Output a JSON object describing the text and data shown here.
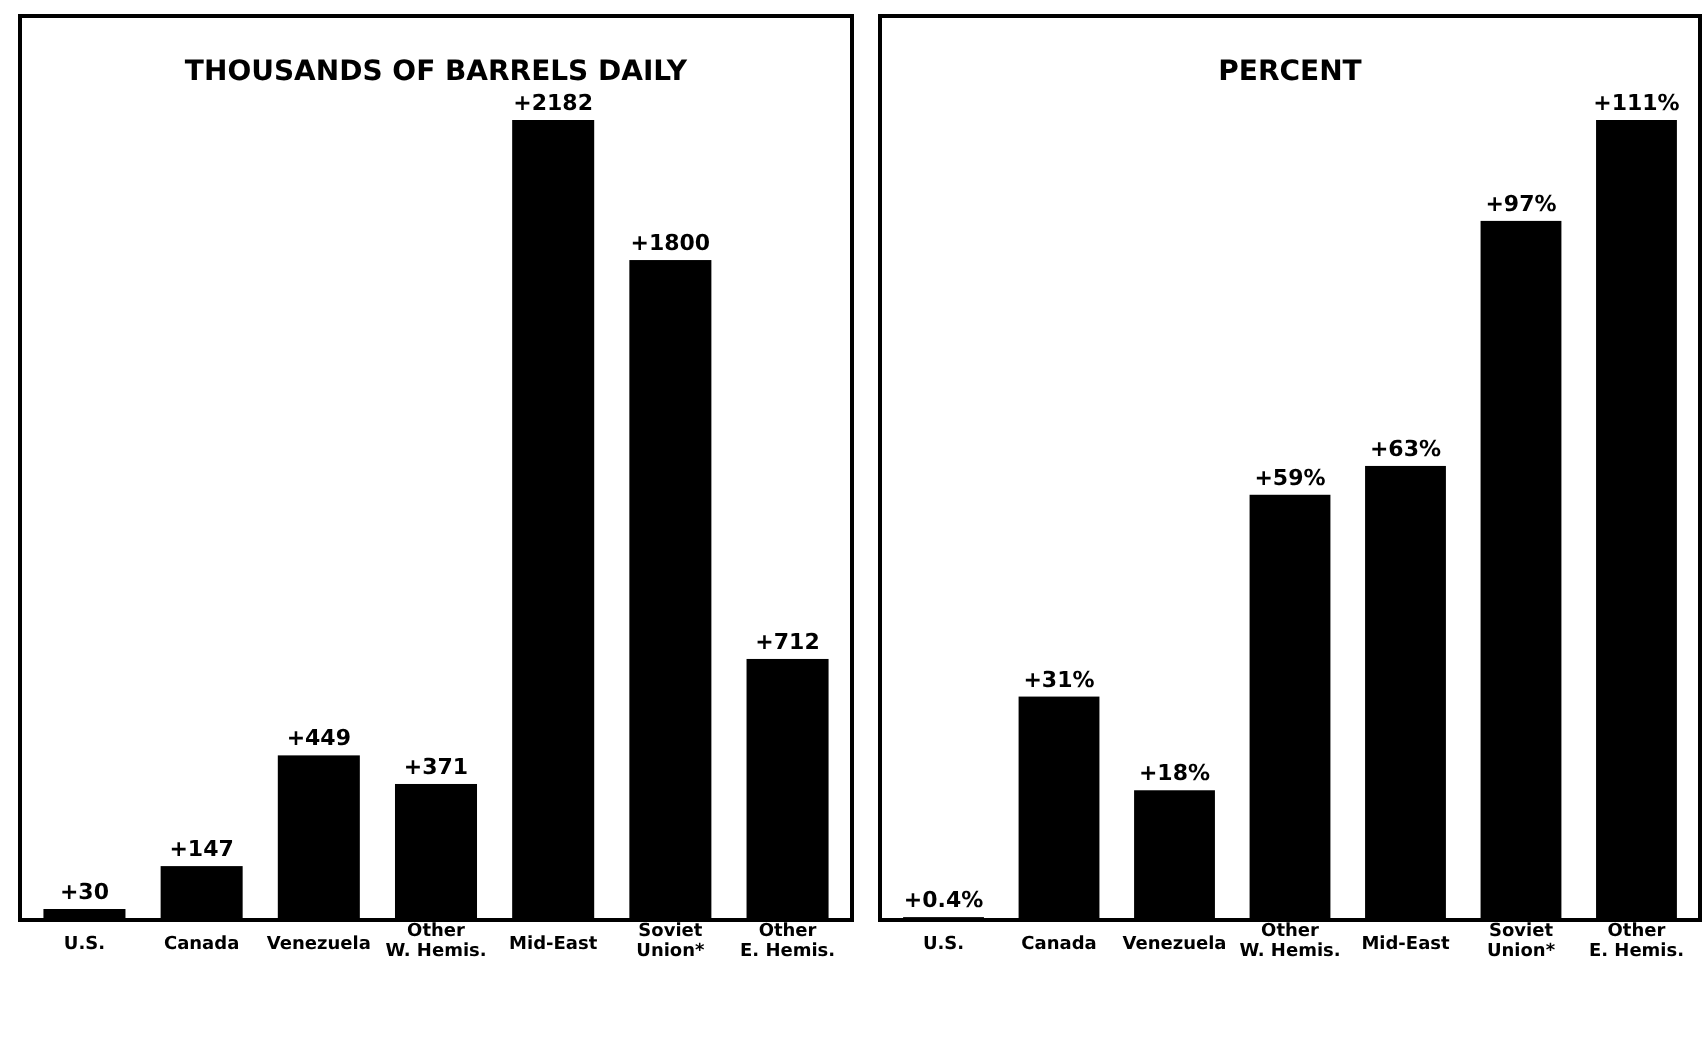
{
  "chart_data": [
    {
      "type": "bar",
      "title": "THOUSANDS OF BARRELS DAILY",
      "categories": [
        "U.S.",
        "Canada",
        "Venezuela",
        "Other W. Hemis.",
        "Mid-East",
        "Soviet Union*",
        "Other E. Hemis."
      ],
      "values": [
        30,
        147,
        449,
        371,
        2182,
        1800,
        712
      ],
      "value_labels": [
        "+30",
        "+147",
        "+449",
        "+371",
        "+2182",
        "+1800",
        "+712"
      ],
      "color": "#000000"
    },
    {
      "type": "bar",
      "title": "PERCENT",
      "categories": [
        "U.S.",
        "Canada",
        "Venezuela",
        "Other W. Hemis.",
        "Mid-East",
        "Soviet Union*",
        "Other E. Hemis."
      ],
      "values": [
        0.4,
        31,
        18,
        59,
        63,
        97,
        111
      ],
      "value_labels": [
        "+0.4%",
        "+31%",
        "+18%",
        "+59%",
        "+63%",
        "+97%",
        "+111%"
      ],
      "color": "#000000"
    }
  ]
}
